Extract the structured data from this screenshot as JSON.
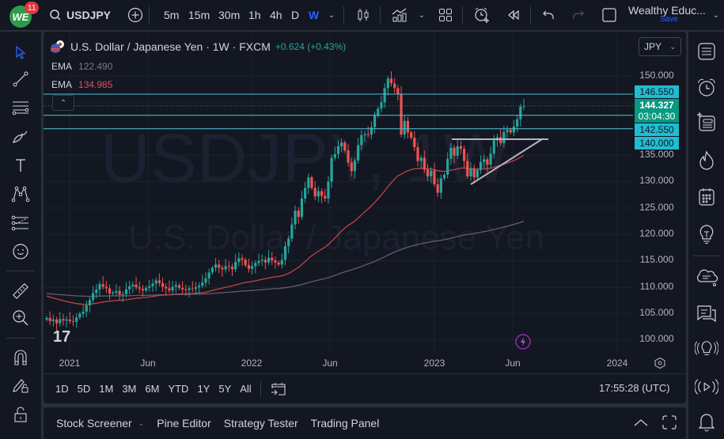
{
  "topbar": {
    "badge_count": "11",
    "symbol": "USDJPY",
    "timeframes": [
      "5m",
      "15m",
      "30m",
      "1h",
      "4h",
      "D",
      "W"
    ],
    "active_timeframe": "W",
    "layout_name": "Wealthy Educ...",
    "save_label": "Save"
  },
  "legend": {
    "title": "U.S. Dollar / Japanese Yen · 1W · FXCM",
    "change": "+0.624 (+0.43%)",
    "ema1_label": "EMA",
    "ema1_value": "122.490",
    "ema1_color": "#787b86",
    "ema2_label": "EMA",
    "ema2_value": "134.985",
    "ema2_color": "#e0505a"
  },
  "watermark": {
    "line1": "USDJPY, 1W",
    "line2": "U.S. Dollar / Japanese Yen"
  },
  "price_scale": {
    "currency": "JPY",
    "ticks": [
      "150.000",
      "135.000",
      "130.000",
      "125.000",
      "120.000",
      "115.000",
      "110.000",
      "105.000",
      "100.000"
    ],
    "tags": [
      "146.550",
      "142.550",
      "140.000"
    ],
    "current_price": "144.327",
    "countdown": "03:04:30"
  },
  "time_axis": {
    "labels": [
      "2021",
      "Jun",
      "2022",
      "Jun",
      "2023",
      "Jun",
      "2024"
    ]
  },
  "range_bar": {
    "ranges": [
      "1D",
      "5D",
      "1M",
      "3M",
      "6M",
      "YTD",
      "1Y",
      "5Y",
      "All"
    ],
    "clock": "17:55:28 (UTC)"
  },
  "bottom_panel": {
    "tabs": [
      "Stock Screener",
      "Pine Editor",
      "Strategy Tester",
      "Trading Panel"
    ]
  },
  "colors": {
    "up": "#26a69a",
    "down": "#ef5350",
    "accent": "#2962ff",
    "hline": "#4fc3d9",
    "current": "#089981"
  },
  "chart_data": {
    "type": "candlestick",
    "title": "U.S. Dollar / Japanese Yen · 1W · FXCM",
    "ylim": [
      97.5,
      153
    ],
    "y_ticks": [
      100,
      105,
      110,
      115,
      120,
      125,
      130,
      135,
      150
    ],
    "x_ticks": [
      "2021",
      "Jun",
      "2022",
      "Jun",
      "2023",
      "Jun",
      "2024"
    ],
    "horizontal_levels": [
      146.55,
      142.55,
      140.0
    ],
    "current_price": 144.327,
    "ema_fast_last": 134.985,
    "ema_slow_last": 122.49,
    "trendlines": [
      {
        "name": "resistance",
        "from": [
          "2023-03",
          140.0
        ],
        "to": [
          "2023-07",
          140.0
        ]
      },
      {
        "name": "rising-support",
        "from": [
          "2023-03",
          129.5
        ],
        "to": [
          "2023-07",
          140.0
        ]
      }
    ],
    "weekly_closes_approx": [
      104.2,
      103.6,
      103.9,
      103.2,
      104.0,
      103.7,
      103.9,
      103.6,
      103.5,
      104.3,
      105.0,
      105.4,
      106.6,
      107.6,
      108.9,
      109.6,
      110.6,
      110.1,
      109.8,
      108.8,
      109.0,
      109.3,
      108.6,
      108.7,
      109.6,
      110.2,
      110.5,
      110.0,
      109.7,
      109.4,
      109.9,
      110.2,
      110.7,
      111.3,
      110.8,
      110.1,
      109.8,
      109.4,
      110.1,
      110.4,
      109.9,
      109.6,
      109.5,
      109.8,
      109.7,
      110.0,
      110.3,
      110.9,
      111.7,
      112.8,
      113.7,
      114.3,
      113.7,
      113.4,
      114.0,
      113.9,
      113.4,
      114.8,
      115.5,
      115.2,
      114.2,
      113.5,
      114.0,
      114.6,
      115.0,
      115.2,
      114.7,
      115.6,
      115.1,
      114.7,
      114.3,
      115.2,
      117.8,
      119.2,
      121.9,
      124.5,
      123.3,
      126.8,
      128.8,
      130.8,
      128.8,
      127.2,
      128.2,
      127.3,
      126.8,
      130.0,
      134.5,
      135.2,
      136.7,
      137.4,
      135.9,
      133.6,
      132.0,
      134.0,
      136.9,
      138.8,
      139.0,
      138.9,
      140.3,
      142.5,
      143.8,
      145.0,
      147.7,
      149.5,
      148.6,
      147.7,
      146.6,
      138.9,
      141.5,
      139.3,
      138.3,
      136.5,
      133.9,
      134.5,
      132.3,
      131.0,
      132.1,
      129.5,
      127.9,
      130.6,
      131.3,
      134.3,
      136.4,
      134.9,
      136.7,
      136.2,
      133.9,
      131.0,
      132.5,
      130.8,
      132.2,
      133.7,
      134.2,
      133.2,
      135.3,
      137.8,
      138.4,
      137.3,
      139.4,
      139.8,
      139.3,
      140.4,
      141.8,
      144.2,
      144.3
    ]
  }
}
